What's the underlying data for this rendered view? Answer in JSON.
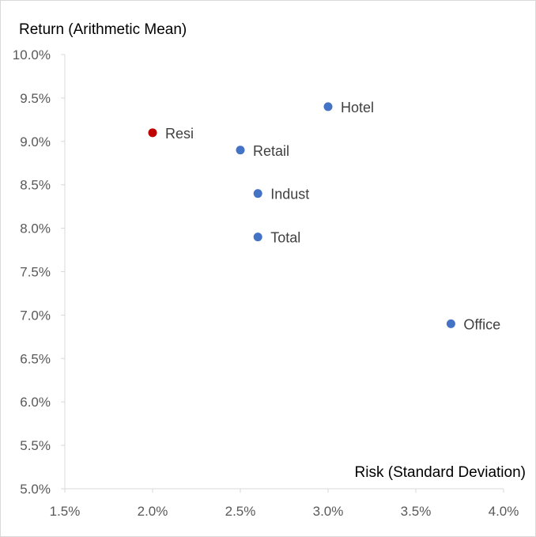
{
  "chart_data": {
    "type": "scatter",
    "title": "",
    "xlabel": "Risk (Standard Deviation)",
    "ylabel": "Return (Arithmetic Mean)",
    "xlim": [
      0.015,
      0.04
    ],
    "ylim": [
      0.05,
      0.1
    ],
    "x_ticks": [
      {
        "value": 0.015,
        "label": "1.5%"
      },
      {
        "value": 0.02,
        "label": "2.0%"
      },
      {
        "value": 0.025,
        "label": "2.5%"
      },
      {
        "value": 0.03,
        "label": "3.0%"
      },
      {
        "value": 0.035,
        "label": "3.5%"
      },
      {
        "value": 0.04,
        "label": "4.0%"
      }
    ],
    "y_ticks": [
      {
        "value": 0.1,
        "label": "10.0%"
      },
      {
        "value": 0.095,
        "label": "9.5%"
      },
      {
        "value": 0.09,
        "label": "9.0%"
      },
      {
        "value": 0.085,
        "label": "8.5%"
      },
      {
        "value": 0.08,
        "label": "8.0%"
      },
      {
        "value": 0.075,
        "label": "7.5%"
      },
      {
        "value": 0.07,
        "label": "7.0%"
      },
      {
        "value": 0.065,
        "label": "6.5%"
      },
      {
        "value": 0.06,
        "label": "6.0%"
      },
      {
        "value": 0.055,
        "label": "5.5%"
      },
      {
        "value": 0.05,
        "label": "5.0%"
      }
    ],
    "grid": false,
    "points": [
      {
        "label": "Hotel",
        "x": 0.03,
        "y": 0.094,
        "color": "#4472c4"
      },
      {
        "label": "Resi",
        "x": 0.02,
        "y": 0.091,
        "color": "#c00000"
      },
      {
        "label": "Retail",
        "x": 0.025,
        "y": 0.089,
        "color": "#4472c4"
      },
      {
        "label": "Indust",
        "x": 0.026,
        "y": 0.084,
        "color": "#4472c4"
      },
      {
        "label": "Total",
        "x": 0.026,
        "y": 0.079,
        "color": "#4472c4"
      },
      {
        "label": "Office",
        "x": 0.037,
        "y": 0.069,
        "color": "#4472c4"
      }
    ]
  },
  "colors": {
    "axis": "#d9d9d9",
    "tick_text": "#595959",
    "title_text": "#000000",
    "label_text": "#404040"
  }
}
